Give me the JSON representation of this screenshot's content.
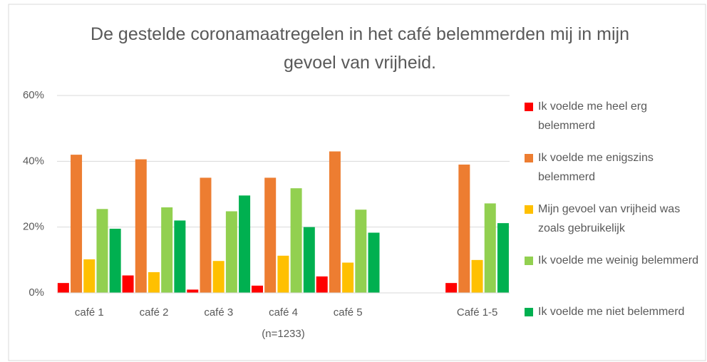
{
  "chart_data": {
    "type": "bar",
    "title": "De gestelde coronamaatregelen in het café belemmerden mij in mijn gevoel van vrijheid.",
    "categories": [
      "café 1",
      "café 2",
      "café 3",
      "café 4",
      "café 5",
      null,
      "Café 1-5"
    ],
    "annotation": "(n=1233)",
    "series": [
      {
        "name": "Ik voelde me heel erg belemmerd",
        "color": "#ff0000",
        "values": [
          3,
          5.3,
          1,
          2.2,
          5,
          null,
          3
        ]
      },
      {
        "name": "Ik voelde me enigszins belemmerd",
        "color": "#ed7d31",
        "values": [
          42,
          40.6,
          35,
          35,
          43,
          null,
          39
        ]
      },
      {
        "name": "Mijn gevoel van vrijheid was zoals gebruikelijk",
        "color": "#ffc000",
        "values": [
          10.2,
          6.3,
          9.7,
          11.3,
          9.2,
          null,
          10
        ]
      },
      {
        "name": "Ik voelde me weinig belemmerd",
        "color": "#92d050",
        "values": [
          25.5,
          26,
          24.8,
          31.8,
          25.3,
          null,
          27.2
        ]
      },
      {
        "name": "Ik voelde me niet belemmerd",
        "color": "#00b050",
        "values": [
          19.5,
          22,
          29.6,
          20,
          18.3,
          null,
          21.2
        ]
      }
    ],
    "ylim": [
      0,
      60
    ],
    "yticks": [
      {
        "value": 0,
        "label": "0%"
      },
      {
        "value": 20,
        "label": "20%"
      },
      {
        "value": 40,
        "label": "40%"
      },
      {
        "value": 60,
        "label": "60%"
      }
    ],
    "grid": true,
    "legend": "right"
  }
}
